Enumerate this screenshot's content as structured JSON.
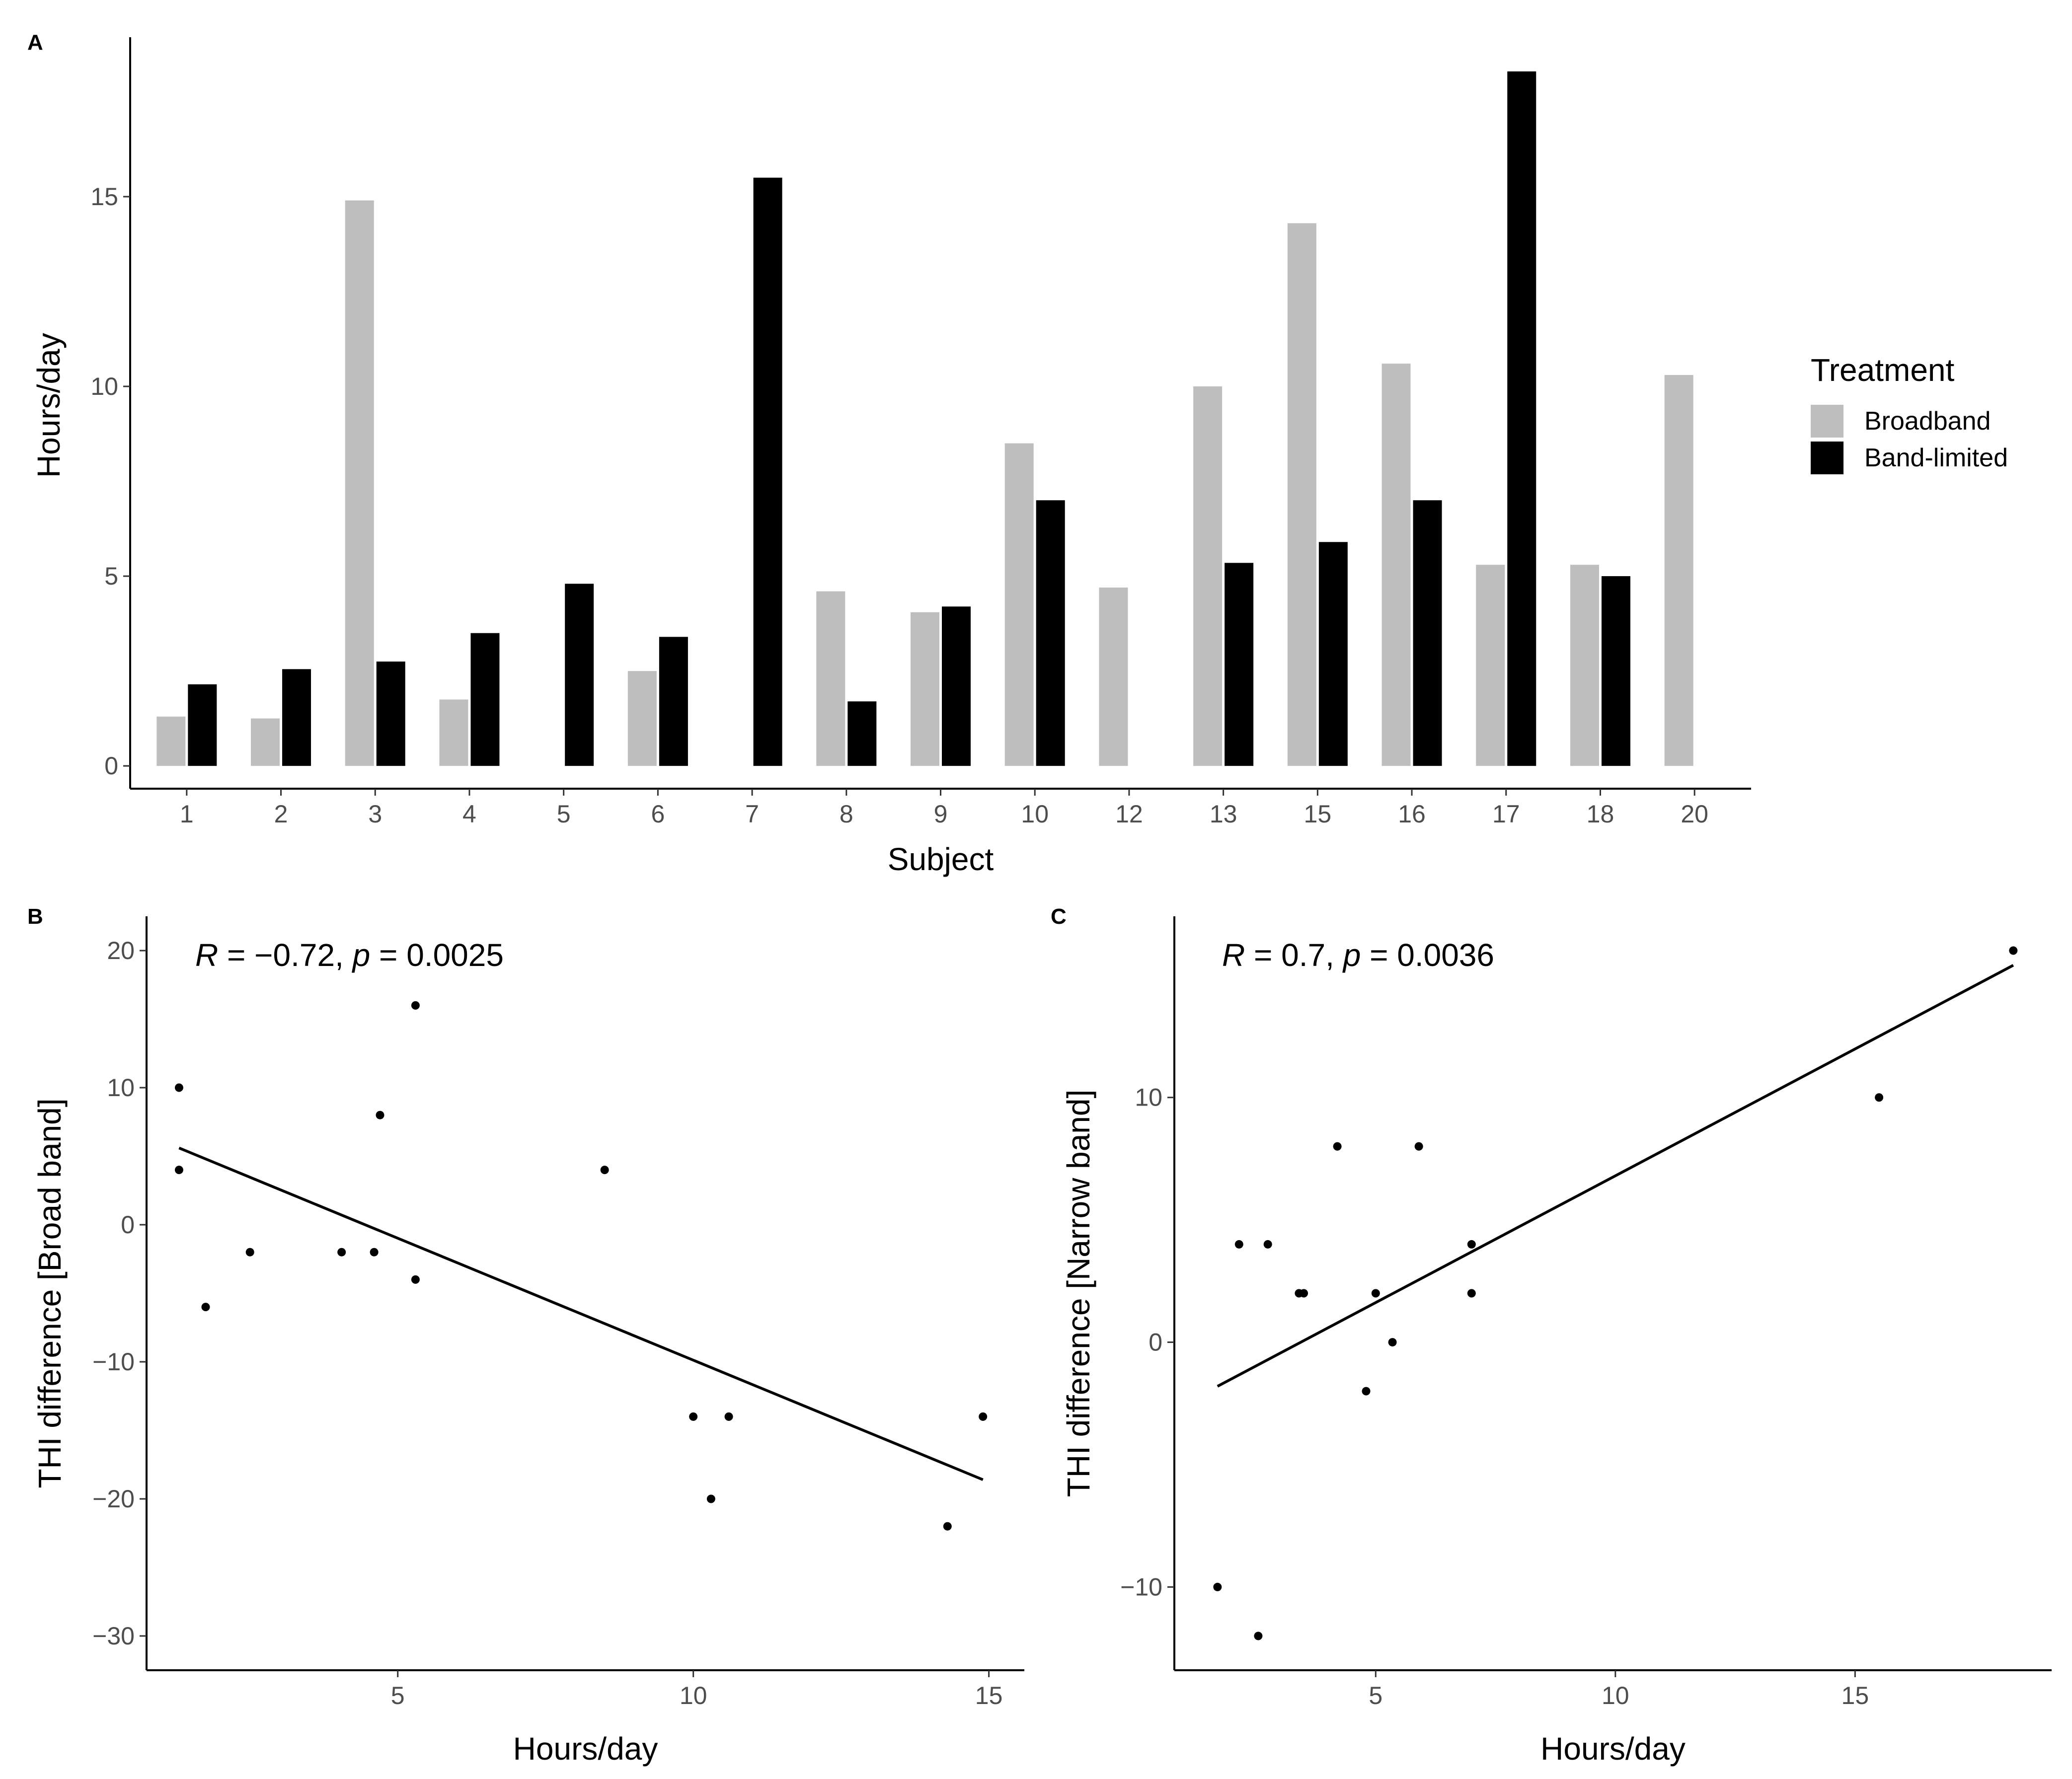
{
  "chart_data": [
    {
      "panel": "A",
      "type": "bar",
      "xlabel": "Subject",
      "ylabel": "Hours/day",
      "ylim": [
        -0.6,
        19.2
      ],
      "yticks": [
        0,
        5,
        10,
        15
      ],
      "categories": [
        "1",
        "2",
        "3",
        "4",
        "5",
        "6",
        "7",
        "8",
        "9",
        "10",
        "12",
        "13",
        "15",
        "16",
        "17",
        "18",
        "20"
      ],
      "legend": {
        "title": "Treatment",
        "position": "right"
      },
      "series": [
        {
          "name": "Broadband",
          "color": "#bebebe",
          "values": [
            1.3,
            1.25,
            14.9,
            1.75,
            null,
            2.5,
            null,
            4.6,
            4.05,
            8.5,
            4.7,
            10.0,
            14.3,
            10.6,
            5.3,
            5.3,
            10.3
          ]
        },
        {
          "name": "Band-limited",
          "color": "#000000",
          "values": [
            2.15,
            2.55,
            2.75,
            3.5,
            4.8,
            3.4,
            15.5,
            1.7,
            4.2,
            7.0,
            null,
            5.35,
            5.9,
            7.0,
            18.3,
            5.0,
            null
          ]
        }
      ]
    },
    {
      "panel": "B",
      "type": "scatter",
      "xlabel": "Hours/day",
      "ylabel": "THI difference [Broad band]",
      "xlim": [
        0.75,
        15.6
      ],
      "ylim": [
        -32.5,
        22.5
      ],
      "xticks": [
        5,
        10,
        15
      ],
      "yticks": [
        -30,
        -20,
        -10,
        0,
        10,
        20
      ],
      "annotation": {
        "r_label": "R",
        "r_text": " = −0.72, ",
        "p_label": "p",
        "p_text": " = 0.0025"
      },
      "points": [
        [
          1.3,
          10
        ],
        [
          1.3,
          4
        ],
        [
          1.75,
          -6
        ],
        [
          2.5,
          -2
        ],
        [
          4.05,
          -2
        ],
        [
          4.6,
          -2
        ],
        [
          4.7,
          8
        ],
        [
          5.3,
          16
        ],
        [
          5.3,
          -4
        ],
        [
          8.5,
          4
        ],
        [
          10.0,
          -14
        ],
        [
          10.6,
          -14
        ],
        [
          10.3,
          -20
        ],
        [
          14.3,
          -22
        ],
        [
          14.9,
          -14
        ]
      ],
      "fit_line": [
        [
          1.3,
          5.6
        ],
        [
          14.9,
          -18.6
        ]
      ]
    },
    {
      "panel": "C",
      "type": "scatter",
      "xlabel": "Hours/day",
      "ylabel": "THI difference [Narrow band]",
      "xlim": [
        0.8,
        19.1
      ],
      "ylim": [
        -13.4,
        17.4
      ],
      "xticks": [
        5,
        10,
        15
      ],
      "yticks": [
        -10,
        0,
        10
      ],
      "annotation": {
        "r_label": "R",
        "r_text": " = 0.7, ",
        "p_label": "p",
        "p_text": " = 0.0036"
      },
      "points": [
        [
          1.7,
          -10
        ],
        [
          2.15,
          4
        ],
        [
          2.55,
          -12
        ],
        [
          2.75,
          4
        ],
        [
          3.4,
          2
        ],
        [
          3.5,
          2
        ],
        [
          4.2,
          8
        ],
        [
          4.8,
          -2
        ],
        [
          5.0,
          2
        ],
        [
          5.35,
          0
        ],
        [
          5.9,
          8
        ],
        [
          7.0,
          4
        ],
        [
          7.0,
          2
        ],
        [
          15.5,
          10
        ],
        [
          18.3,
          16
        ]
      ],
      "fit_line": [
        [
          1.7,
          -1.8
        ],
        [
          18.3,
          15.4
        ]
      ]
    }
  ]
}
